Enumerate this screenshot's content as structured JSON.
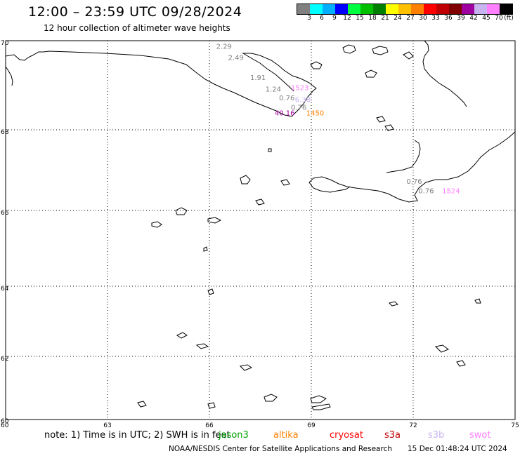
{
  "header": {
    "title": "12:00 – 23:59 UTC 09/28/2024",
    "subtitle": "12 hour collection of altimeter wave heights"
  },
  "colorbar": {
    "colors": [
      "#808080",
      "#00ffff",
      "#00b0ff",
      "#0000ff",
      "#00ff40",
      "#00c000",
      "#008000",
      "#ffff00",
      "#ffc000",
      "#ff8000",
      "#ff0000",
      "#c00000",
      "#800000",
      "#a000a0",
      "#c8b4f0",
      "#ff80ff",
      "#000000"
    ],
    "labels": [
      "3",
      "6",
      "9",
      "12",
      "15",
      "18",
      "21",
      "24",
      "27",
      "30",
      "33",
      "36",
      "39",
      "42",
      "45",
      "70",
      "(ft)"
    ]
  },
  "map": {
    "lon_ticks": [
      "60",
      "63",
      "66",
      "69",
      "72",
      "75"
    ],
    "lat_ticks": [
      "70",
      "68",
      "66",
      "64",
      "62",
      "60"
    ]
  },
  "wave_labels": [
    {
      "text": "2.29",
      "lon": 66.2,
      "lat": 69.82,
      "color": "#808080"
    },
    {
      "text": "2.49",
      "lon": 66.55,
      "lat": 69.57,
      "color": "#808080"
    },
    {
      "text": "1.91",
      "lon": 67.2,
      "lat": 69.12,
      "color": "#808080"
    },
    {
      "text": "1.24",
      "lon": 67.65,
      "lat": 68.86,
      "color": "#808080"
    },
    {
      "text": "0.76",
      "lon": 68.05,
      "lat": 68.66,
      "color": "#808080"
    },
    {
      "text": "1523",
      "lon": 68.4,
      "lat": 68.89,
      "color": "#ff80ff"
    },
    {
      "text": "6.38",
      "lon": 68.52,
      "lat": 68.62,
      "color": "#c8b4f0"
    },
    {
      "text": "0.76",
      "lon": 68.4,
      "lat": 68.45,
      "color": "#808080"
    },
    {
      "text": "40.16",
      "lon": 67.92,
      "lat": 68.32,
      "color": "#a000a0"
    },
    {
      "text": "1450",
      "lon": 68.85,
      "lat": 68.32,
      "color": "#ff8000"
    },
    {
      "text": "0.76",
      "lon": 71.8,
      "lat": 66.66,
      "color": "#808080"
    },
    {
      "text": "0.76",
      "lon": 72.15,
      "lat": 66.43,
      "color": "#808080"
    },
    {
      "text": "1524",
      "lon": 72.85,
      "lat": 66.43,
      "color": "#ff80ff"
    }
  ],
  "note": {
    "prefix": "note:  1) Time is in UTC; 2) SWH is in feet",
    "satellites": [
      {
        "name": "jason3",
        "color": "#00a000"
      },
      {
        "name": "altika",
        "color": "#ff8000"
      },
      {
        "name": "cryosat",
        "color": "#ff0000"
      },
      {
        "name": "s3a",
        "color": "#c00000"
      },
      {
        "name": "s3b",
        "color": "#c8b4f0"
      },
      {
        "name": "swot",
        "color": "#ff80ff"
      }
    ]
  },
  "footer": {
    "credit": "NOAA/NESDIS Center for Satellite Applications and Research",
    "timestamp": "15 Dec 01:48:24 UTC 2024"
  }
}
